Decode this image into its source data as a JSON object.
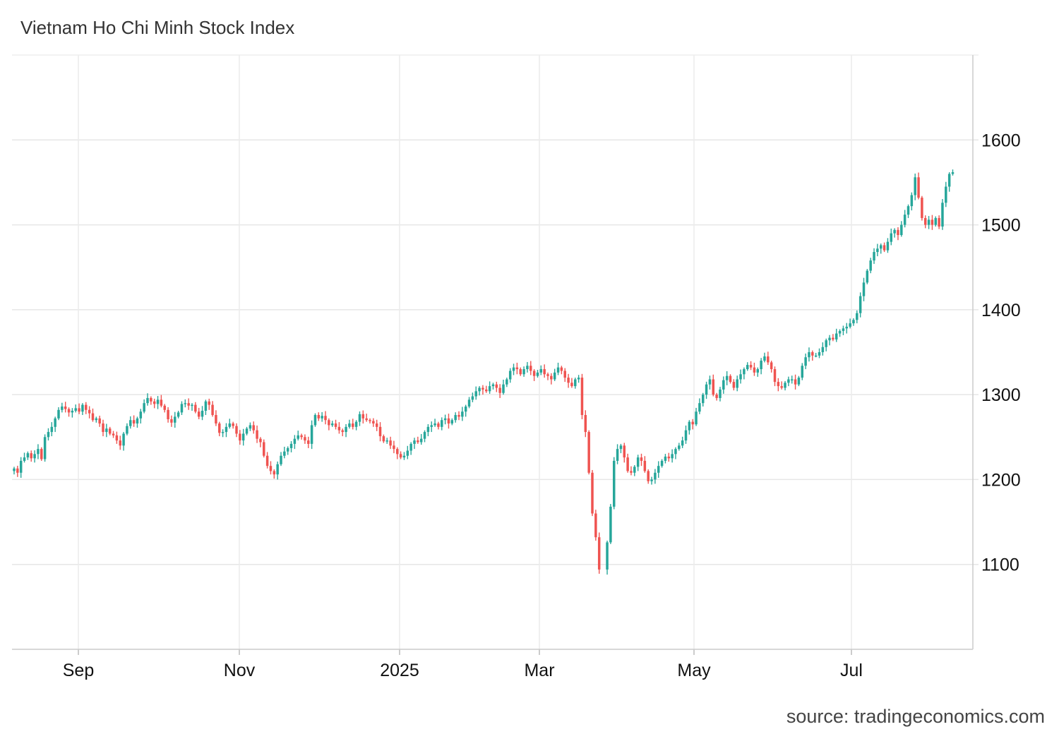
{
  "chart_data": {
    "type": "candlestick",
    "title": "Vietnam Ho Chi Minh Stock Index",
    "source": "source: tradingeconomics.com",
    "ylim": [
      1000,
      1700
    ],
    "y_ticks": [
      1100,
      1200,
      1300,
      1400,
      1500,
      1600
    ],
    "x_ticks": [
      "Sep",
      "Nov",
      "2025",
      "Mar",
      "May",
      "Jul"
    ],
    "grid": true,
    "colors": {
      "up": "#26a69a",
      "down": "#ef5350"
    },
    "closes": [
      1213,
      1208,
      1222,
      1226,
      1231,
      1225,
      1230,
      1236,
      1224,
      1250,
      1256,
      1262,
      1272,
      1282,
      1286,
      1283,
      1279,
      1281,
      1284,
      1280,
      1288,
      1282,
      1278,
      1270,
      1272,
      1266,
      1256,
      1260,
      1254,
      1252,
      1246,
      1240,
      1254,
      1263,
      1270,
      1266,
      1272,
      1280,
      1290,
      1296,
      1292,
      1289,
      1294,
      1287,
      1282,
      1271,
      1267,
      1274,
      1279,
      1289,
      1290,
      1287,
      1288,
      1280,
      1274,
      1281,
      1292,
      1288,
      1276,
      1266,
      1255,
      1256,
      1262,
      1266,
      1263,
      1254,
      1246,
      1254,
      1260,
      1264,
      1258,
      1248,
      1244,
      1228,
      1216,
      1210,
      1206,
      1218,
      1228,
      1233,
      1237,
      1242,
      1248,
      1252,
      1250,
      1246,
      1242,
      1264,
      1276,
      1272,
      1275,
      1270,
      1264,
      1266,
      1262,
      1258,
      1256,
      1262,
      1266,
      1262,
      1268,
      1277,
      1272,
      1270,
      1269,
      1266,
      1262,
      1251,
      1245,
      1246,
      1240,
      1236,
      1230,
      1226,
      1228,
      1234,
      1242,
      1246,
      1244,
      1248,
      1256,
      1262,
      1264,
      1266,
      1262,
      1270,
      1272,
      1266,
      1270,
      1276,
      1274,
      1280,
      1286,
      1294,
      1298,
      1304,
      1308,
      1306,
      1304,
      1310,
      1312,
      1308,
      1302,
      1312,
      1318,
      1328,
      1332,
      1330,
      1324,
      1330,
      1334,
      1328,
      1322,
      1326,
      1330,
      1324,
      1322,
      1318,
      1326,
      1332,
      1328,
      1320,
      1314,
      1310,
      1318,
      1320,
      1276,
      1256,
      1208,
      1160,
      1132,
      1094,
      1126,
      1168,
      1222,
      1236,
      1240,
      1226,
      1210,
      1208,
      1215,
      1226,
      1222,
      1210,
      1198,
      1200,
      1208,
      1216,
      1222,
      1227,
      1225,
      1230,
      1236,
      1240,
      1246,
      1258,
      1268,
      1265,
      1280,
      1290,
      1300,
      1312,
      1318,
      1300,
      1296,
      1306,
      1317,
      1322,
      1315,
      1308,
      1318,
      1324,
      1330,
      1335,
      1332,
      1326,
      1330,
      1340,
      1345,
      1338,
      1330,
      1315,
      1310,
      1308,
      1314,
      1318,
      1318,
      1312,
      1320,
      1334,
      1344,
      1350,
      1346,
      1346,
      1350,
      1356,
      1364,
      1367,
      1365,
      1372,
      1375,
      1378,
      1380,
      1384,
      1388,
      1396,
      1416,
      1432,
      1446,
      1458,
      1468,
      1472,
      1476,
      1470,
      1480,
      1490,
      1494,
      1488,
      1500,
      1512,
      1522,
      1535,
      1556,
      1532,
      1508,
      1500,
      1506,
      1500,
      1508,
      1498,
      1526,
      1545,
      1560,
      1562
    ]
  }
}
